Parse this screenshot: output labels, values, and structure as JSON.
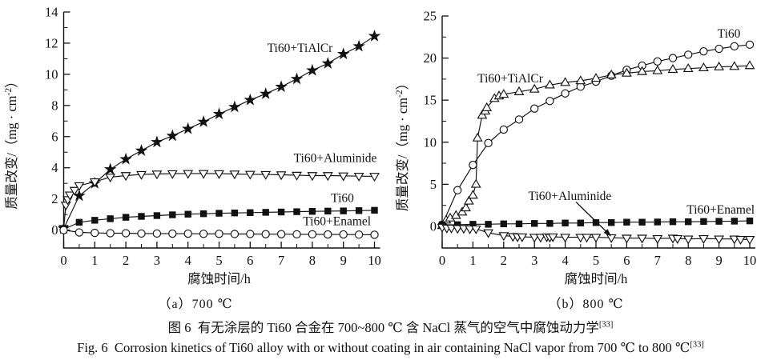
{
  "figure": {
    "caption_zh": "图 6 有无涂层的 Ti60 合金在 700~800 ℃ 含 NaCl 蒸气的空气中腐蚀动力学",
    "caption_zh_sup": "[33]",
    "caption_en": "Fig. 6 Corrosion kinetics of Ti60 alloy with or without coating in air containing NaCl vapor from 700 ℃ to 800 ℃",
    "caption_en_sup": "[33]"
  },
  "chart_data": [
    {
      "type": "line",
      "subcaption": "（a）700 ℃",
      "xlabel": "腐蚀时间/h",
      "ylabel": {
        "pre": "质量改变/（mg · cm",
        "sup": "-2",
        "post": "）"
      },
      "xlim": [
        0,
        10
      ],
      "ylim": [
        -1.15,
        14
      ],
      "xticks": [
        0,
        1,
        2,
        3,
        4,
        5,
        6,
        7,
        8,
        9,
        10
      ],
      "xminor": [
        0.5,
        1.5,
        2.5,
        3.5,
        4.5,
        5.5,
        6.5,
        7.5,
        8.5,
        9.5
      ],
      "yticks": [
        0,
        2,
        4,
        6,
        8,
        10,
        12,
        14
      ],
      "yminor": [
        1,
        3,
        5,
        7,
        9,
        11,
        13
      ],
      "grid": false,
      "series": [
        {
          "name": "Ti60+TiAlCr",
          "marker": "star",
          "x": [
            0,
            0.5,
            1,
            1.5,
            2,
            2.5,
            3,
            3.5,
            4,
            4.5,
            5,
            5.5,
            6,
            6.5,
            7,
            7.5,
            8,
            8.5,
            9,
            9.5,
            10
          ],
          "y": [
            0.1,
            2.2,
            3.0,
            3.9,
            4.55,
            5.1,
            5.65,
            6.05,
            6.5,
            6.95,
            7.45,
            7.9,
            8.35,
            8.75,
            9.2,
            9.7,
            10.25,
            10.7,
            11.3,
            11.8,
            12.45
          ],
          "label": {
            "text": "Ti60+TiAlCr",
            "x": 6.55,
            "y": 11.7
          }
        },
        {
          "name": "Ti60+Aluminide",
          "marker": "triangle-down",
          "x": [
            0,
            0.07,
            0.13,
            0.2,
            0.35,
            0.5,
            1,
            1.5,
            2,
            2.5,
            3,
            3.5,
            4,
            4.5,
            5,
            5.5,
            6,
            6.5,
            7,
            7.5,
            8,
            8.5,
            9,
            9.5,
            10
          ],
          "y": [
            0.1,
            1.6,
            1.95,
            2.25,
            2.55,
            2.85,
            3.1,
            3.4,
            3.5,
            3.57,
            3.6,
            3.62,
            3.63,
            3.63,
            3.62,
            3.6,
            3.58,
            3.57,
            3.55,
            3.52,
            3.5,
            3.5,
            3.48,
            3.46,
            3.45
          ],
          "label": {
            "text": "Ti60+Aluminide",
            "x": 7.4,
            "y": 4.62
          }
        },
        {
          "name": "Ti60",
          "marker": "square",
          "x": [
            0,
            0.5,
            1,
            1.5,
            2,
            2.5,
            3,
            3.5,
            4,
            4.5,
            5,
            5.5,
            6,
            6.5,
            7,
            7.5,
            8,
            8.5,
            9,
            9.5,
            10
          ],
          "y": [
            0.05,
            0.5,
            0.63,
            0.73,
            0.82,
            0.88,
            0.93,
            0.98,
            1.02,
            1.05,
            1.08,
            1.1,
            1.12,
            1.14,
            1.16,
            1.18,
            1.2,
            1.22,
            1.23,
            1.25,
            1.27
          ],
          "label": {
            "text": "Ti60",
            "x": 8.6,
            "y": 2.05
          }
        },
        {
          "name": "Ti60+Enamel",
          "marker": "circle",
          "x": [
            0,
            0.5,
            1,
            1.5,
            2,
            2.5,
            3,
            3.5,
            4,
            4.5,
            5,
            5.5,
            6,
            6.5,
            7,
            7.5,
            8,
            8.5,
            9,
            9.5,
            10
          ],
          "y": [
            0,
            -0.15,
            -0.18,
            -0.2,
            -0.2,
            -0.22,
            -0.22,
            -0.23,
            -0.23,
            -0.24,
            -0.24,
            -0.25,
            -0.25,
            -0.26,
            -0.26,
            -0.27,
            -0.27,
            -0.28,
            -0.28,
            -0.29,
            -0.3
          ],
          "label": {
            "text": "Ti60+Enamel",
            "x": 7.7,
            "y": 0.56
          }
        }
      ],
      "annotations": []
    },
    {
      "type": "line",
      "subcaption": "（b）800 ℃",
      "xlabel": "腐蚀时间/h",
      "ylabel": {
        "pre": "质量改变/（mg · cm",
        "sup": "-2",
        "post": "）"
      },
      "xlim": [
        0,
        10
      ],
      "ylim": [
        -2.57,
        25
      ],
      "xticks": [
        0,
        1,
        2,
        3,
        4,
        5,
        6,
        7,
        8,
        9,
        10
      ],
      "xminor": [
        0.5,
        1.5,
        2.5,
        3.5,
        4.5,
        5.5,
        6.5,
        7.5,
        8.5,
        9.5
      ],
      "yticks": [
        0,
        5,
        10,
        15,
        20,
        25
      ],
      "yminor": [
        2.5,
        7.5,
        12.5,
        17.5,
        22.5
      ],
      "grid": false,
      "series": [
        {
          "name": "Ti60",
          "marker": "circle",
          "x": [
            0,
            0.5,
            1,
            1.5,
            2,
            2.5,
            3,
            3.5,
            4,
            4.5,
            5,
            5.5,
            6,
            6.5,
            7,
            7.5,
            8,
            8.5,
            9,
            9.5,
            10
          ],
          "y": [
            0.2,
            4.3,
            7.3,
            9.9,
            11.5,
            12.7,
            14.0,
            14.9,
            15.8,
            16.6,
            17.2,
            17.9,
            18.6,
            19.1,
            19.6,
            20.0,
            20.4,
            20.8,
            21.1,
            21.4,
            21.6
          ],
          "label": {
            "text": "Ti60",
            "x": 8.95,
            "y": 22.9
          }
        },
        {
          "name": "Ti60+TiAlCr",
          "marker": "triangle-up",
          "x": [
            0,
            0.13,
            0.26,
            0.45,
            0.65,
            0.77,
            0.87,
            1.0,
            1.1,
            1.15,
            1.3,
            1.4,
            1.45,
            1.7,
            1.85,
            2,
            2.5,
            3,
            3.5,
            4,
            4.5,
            5,
            5.5,
            6,
            6.5,
            7,
            7.5,
            8,
            8.5,
            9,
            9.5,
            10
          ],
          "y": [
            0.1,
            0.75,
            1.0,
            1.3,
            1.7,
            2.2,
            3.0,
            3.7,
            5.0,
            10.5,
            13.2,
            13.7,
            14.1,
            15.2,
            15.5,
            15.7,
            16.0,
            16.3,
            16.8,
            17.1,
            17.3,
            17.6,
            18.0,
            18.2,
            18.4,
            18.5,
            18.65,
            18.75,
            18.85,
            18.95,
            19.0,
            19.1
          ],
          "label": {
            "text": "Ti60+TiAlCr",
            "x": 1.15,
            "y": 17.6
          }
        },
        {
          "name": "Ti60+Enamel",
          "marker": "square",
          "x": [
            0,
            0.5,
            1,
            1.5,
            2,
            2.5,
            3,
            3.5,
            4,
            4.5,
            5,
            5.5,
            6,
            6.5,
            7,
            7.5,
            8,
            8.5,
            9,
            9.5,
            10
          ],
          "y": [
            0.2,
            0.2,
            0.25,
            0.25,
            0.3,
            0.3,
            0.35,
            0.35,
            0.4,
            0.4,
            0.45,
            0.45,
            0.5,
            0.5,
            0.52,
            0.55,
            0.55,
            0.58,
            0.6,
            0.62,
            0.65
          ],
          "label": {
            "text": "Ti60+Enamel",
            "x": 7.95,
            "y": 2.0
          }
        },
        {
          "name": "Ti60+Aluminide",
          "marker": "triangle-down",
          "x": [
            0,
            0.15,
            0.3,
            0.5,
            0.7,
            0.9,
            1.1,
            1.5,
            2,
            2.3,
            2.45,
            2.6,
            3,
            3.2,
            3.4,
            3.5,
            3.6,
            4,
            4.5,
            4.7,
            5,
            5.5,
            6,
            6.5,
            7,
            7.5,
            7.65,
            8,
            8.5,
            9,
            9.5,
            9.7,
            10
          ],
          "y": [
            -0.1,
            -0.2,
            -0.2,
            -0.25,
            -0.25,
            -0.3,
            -0.3,
            -0.75,
            -1.1,
            -1.2,
            -1.25,
            -1.25,
            -1.3,
            -1.3,
            -1.25,
            -1.3,
            -1.25,
            -1.3,
            -1.3,
            -1.3,
            -1.3,
            -1.35,
            -1.4,
            -1.4,
            -1.45,
            -1.4,
            -1.45,
            -1.5,
            -1.45,
            -1.5,
            -1.5,
            -1.55,
            -1.55
          ],
          "label": {
            "text": "Ti60+Aluminide",
            "x": 2.8,
            "y": 3.6
          }
        }
      ],
      "annotations": [
        {
          "type": "arrow",
          "from": [
            4.35,
            2.9
          ],
          "to": [
            5.5,
            -1.2
          ]
        }
      ]
    }
  ]
}
